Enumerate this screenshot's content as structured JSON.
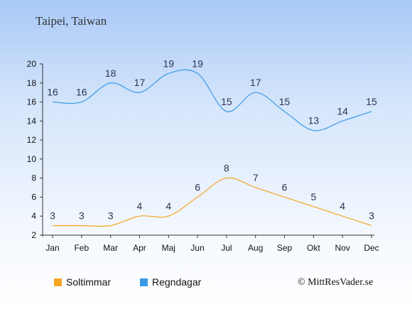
{
  "chart_data": {
    "type": "line",
    "title": "Taipei, Taiwan",
    "categories": [
      "Jan",
      "Feb",
      "Mar",
      "Apr",
      "Maj",
      "Jun",
      "Jul",
      "Aug",
      "Sep",
      "Okt",
      "Nov",
      "Dec"
    ],
    "ylim": [
      2,
      20
    ],
    "yticks": [
      2,
      4,
      6,
      8,
      10,
      12,
      14,
      16,
      18,
      20
    ],
    "series": [
      {
        "name": "Soltimmar",
        "color": "#f5a623",
        "values": [
          3,
          3,
          3,
          4,
          4,
          6,
          8,
          7,
          6,
          5,
          4,
          3
        ]
      },
      {
        "name": "Regndagar",
        "color": "#3a9ae8",
        "values": [
          16,
          16,
          18,
          17,
          19,
          19,
          15,
          17,
          15,
          13,
          14,
          15
        ]
      }
    ],
    "legend_position": "bottom-left",
    "grid": false
  },
  "footer": {
    "copyright": "© MittResVader.se"
  }
}
